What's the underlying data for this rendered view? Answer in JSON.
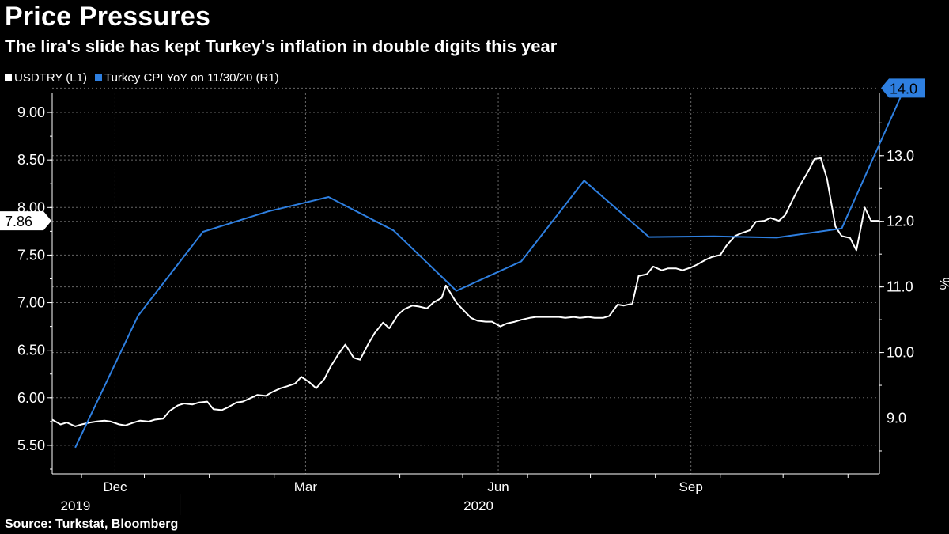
{
  "header": {
    "title": "Price Pressures",
    "subtitle": "The lira's slide has kept Turkey's inflation in double digits this year"
  },
  "footer": {
    "source": "Source: Turkstat, Bloomberg"
  },
  "colors": {
    "usdtry": "#ffffff",
    "cpi": "#2e7fe0",
    "background": "#000000",
    "grid": "#666666"
  },
  "chart_data": {
    "type": "line",
    "legend_position": "top-left",
    "grid": true,
    "x_range": [
      "2019-11-01",
      "2020-11-30"
    ],
    "x_ticks": [
      {
        "label": "Dec",
        "date": "2019-12-01"
      },
      {
        "label": "Mar",
        "date": "2020-03-01"
      },
      {
        "label": "Jun",
        "date": "2020-06-01"
      },
      {
        "label": "Sep",
        "date": "2020-09-01"
      }
    ],
    "year_labels": [
      {
        "label": "2019",
        "date": "2019-12-01"
      },
      {
        "label": "2020",
        "date": "2020-06-01"
      }
    ],
    "y_left": {
      "ylim": [
        5.2,
        9.2
      ],
      "ticks": [
        "5.50",
        "6.00",
        "6.50",
        "7.00",
        "7.50",
        "8.00",
        "8.50",
        "9.00"
      ],
      "last_value_label": "7.86"
    },
    "y_right": {
      "label": "%",
      "ylim": [
        8.15,
        13.95
      ],
      "ticks": [
        "9.0",
        "10.0",
        "11.0",
        "12.0",
        "13.0"
      ],
      "last_value_label": "14.0"
    },
    "series": [
      {
        "name": "USDTRY (L1)",
        "axis": "left",
        "points": [
          [
            "2019-11-01",
            5.77
          ],
          [
            "2019-11-05",
            5.72
          ],
          [
            "2019-11-08",
            5.74
          ],
          [
            "2019-11-12",
            5.7
          ],
          [
            "2019-11-15",
            5.72
          ],
          [
            "2019-11-19",
            5.74
          ],
          [
            "2019-11-22",
            5.75
          ],
          [
            "2019-11-26",
            5.76
          ],
          [
            "2019-11-29",
            5.75
          ],
          [
            "2019-12-03",
            5.72
          ],
          [
            "2019-12-06",
            5.71
          ],
          [
            "2019-12-10",
            5.74
          ],
          [
            "2019-12-13",
            5.76
          ],
          [
            "2019-12-17",
            5.75
          ],
          [
            "2019-12-20",
            5.77
          ],
          [
            "2019-12-24",
            5.78
          ],
          [
            "2019-12-27",
            5.86
          ],
          [
            "2019-12-31",
            5.92
          ],
          [
            "2020-01-03",
            5.94
          ],
          [
            "2020-01-07",
            5.93
          ],
          [
            "2020-01-10",
            5.95
          ],
          [
            "2020-01-14",
            5.96
          ],
          [
            "2020-01-17",
            5.88
          ],
          [
            "2020-01-21",
            5.87
          ],
          [
            "2020-01-24",
            5.9
          ],
          [
            "2020-01-28",
            5.95
          ],
          [
            "2020-01-31",
            5.96
          ],
          [
            "2020-02-04",
            6.0
          ],
          [
            "2020-02-07",
            6.03
          ],
          [
            "2020-02-11",
            6.02
          ],
          [
            "2020-02-14",
            6.06
          ],
          [
            "2020-02-18",
            6.1
          ],
          [
            "2020-02-21",
            6.12
          ],
          [
            "2020-02-25",
            6.15
          ],
          [
            "2020-02-28",
            6.22
          ],
          [
            "2020-03-03",
            6.16
          ],
          [
            "2020-03-06",
            6.1
          ],
          [
            "2020-03-10",
            6.2
          ],
          [
            "2020-03-13",
            6.33
          ],
          [
            "2020-03-17",
            6.47
          ],
          [
            "2020-03-20",
            6.56
          ],
          [
            "2020-03-24",
            6.42
          ],
          [
            "2020-03-27",
            6.4
          ],
          [
            "2020-03-31",
            6.57
          ],
          [
            "2020-04-03",
            6.68
          ],
          [
            "2020-04-07",
            6.79
          ],
          [
            "2020-04-10",
            6.73
          ],
          [
            "2020-04-14",
            6.87
          ],
          [
            "2020-04-17",
            6.93
          ],
          [
            "2020-04-21",
            6.97
          ],
          [
            "2020-04-24",
            6.96
          ],
          [
            "2020-04-28",
            6.94
          ],
          [
            "2020-05-01",
            7.0
          ],
          [
            "2020-05-05",
            7.05
          ],
          [
            "2020-05-07",
            7.18
          ],
          [
            "2020-05-12",
            7.0
          ],
          [
            "2020-05-15",
            6.93
          ],
          [
            "2020-05-19",
            6.84
          ],
          [
            "2020-05-22",
            6.81
          ],
          [
            "2020-05-26",
            6.8
          ],
          [
            "2020-05-29",
            6.8
          ],
          [
            "2020-06-02",
            6.75
          ],
          [
            "2020-06-05",
            6.78
          ],
          [
            "2020-06-09",
            6.8
          ],
          [
            "2020-06-12",
            6.82
          ],
          [
            "2020-06-16",
            6.84
          ],
          [
            "2020-06-19",
            6.85
          ],
          [
            "2020-06-23",
            6.85
          ],
          [
            "2020-06-26",
            6.85
          ],
          [
            "2020-06-30",
            6.85
          ],
          [
            "2020-07-03",
            6.84
          ],
          [
            "2020-07-07",
            6.85
          ],
          [
            "2020-07-10",
            6.84
          ],
          [
            "2020-07-14",
            6.85
          ],
          [
            "2020-07-17",
            6.84
          ],
          [
            "2020-07-21",
            6.84
          ],
          [
            "2020-07-24",
            6.86
          ],
          [
            "2020-07-28",
            6.98
          ],
          [
            "2020-07-31",
            6.97
          ],
          [
            "2020-08-04",
            6.99
          ],
          [
            "2020-08-07",
            7.28
          ],
          [
            "2020-08-11",
            7.3
          ],
          [
            "2020-08-14",
            7.38
          ],
          [
            "2020-08-18",
            7.34
          ],
          [
            "2020-08-21",
            7.36
          ],
          [
            "2020-08-25",
            7.36
          ],
          [
            "2020-08-28",
            7.34
          ],
          [
            "2020-09-01",
            7.37
          ],
          [
            "2020-09-04",
            7.4
          ],
          [
            "2020-09-08",
            7.45
          ],
          [
            "2020-09-11",
            7.48
          ],
          [
            "2020-09-15",
            7.5
          ],
          [
            "2020-09-18",
            7.6
          ],
          [
            "2020-09-22",
            7.7
          ],
          [
            "2020-09-25",
            7.73
          ],
          [
            "2020-09-29",
            7.76
          ],
          [
            "2020-10-02",
            7.85
          ],
          [
            "2020-10-06",
            7.86
          ],
          [
            "2020-10-09",
            7.89
          ],
          [
            "2020-10-13",
            7.86
          ],
          [
            "2020-10-16",
            7.92
          ],
          [
            "2020-10-20",
            8.1
          ],
          [
            "2020-10-23",
            8.23
          ],
          [
            "2020-10-27",
            8.38
          ],
          [
            "2020-10-30",
            8.51
          ],
          [
            "2020-11-02",
            8.52
          ],
          [
            "2020-11-05",
            8.3
          ],
          [
            "2020-11-09",
            7.8
          ],
          [
            "2020-11-12",
            7.7
          ],
          [
            "2020-11-16",
            7.68
          ],
          [
            "2020-11-19",
            7.55
          ],
          [
            "2020-11-23",
            8.0
          ],
          [
            "2020-11-26",
            7.86
          ],
          [
            "2020-11-30",
            7.86
          ]
        ]
      },
      {
        "name": "Turkey CPI YoY on 11/30/20 (R1)",
        "axis": "right",
        "points": [
          [
            "2019-11-12",
            8.55
          ],
          [
            "2019-12-12",
            10.56
          ],
          [
            "2020-01-12",
            11.84
          ],
          [
            "2020-02-12",
            12.15
          ],
          [
            "2020-03-12",
            12.37
          ],
          [
            "2020-04-12",
            11.86
          ],
          [
            "2020-05-12",
            10.94
          ],
          [
            "2020-06-12",
            11.39
          ],
          [
            "2020-07-12",
            12.62
          ],
          [
            "2020-08-12",
            11.76
          ],
          [
            "2020-09-12",
            11.77
          ],
          [
            "2020-10-12",
            11.75
          ],
          [
            "2020-11-12",
            11.89
          ],
          [
            "2020-12-12",
            14.03
          ]
        ]
      }
    ]
  }
}
